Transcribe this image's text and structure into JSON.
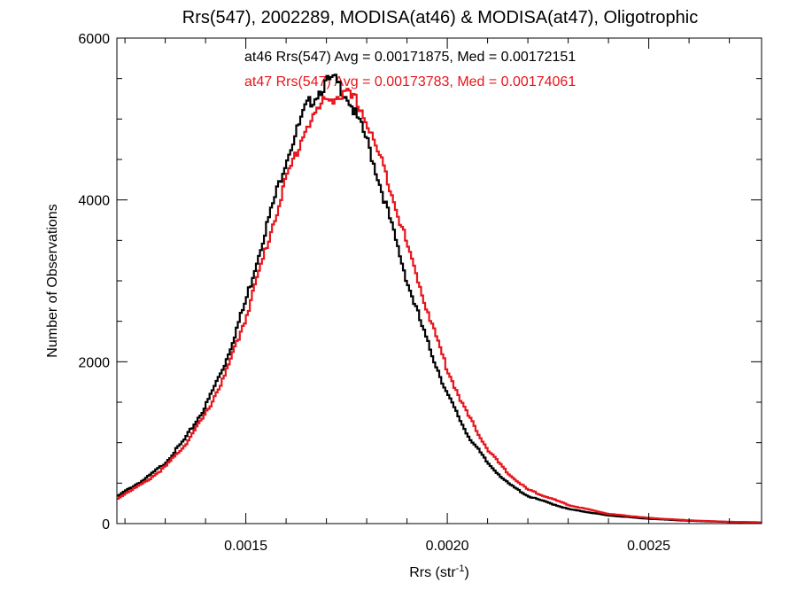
{
  "chart_data": {
    "type": "line",
    "title": "Rrs(547), 2002289, MODISA(at46) & MODISA(at47), Oligotrophic",
    "xlabel": "Rrs (str",
    "xlabel_sup": "-1",
    "xlabel_end": ")",
    "ylabel": "Number of Observations",
    "xlim": [
      0.00118,
      0.00278
    ],
    "ylim": [
      0,
      6000
    ],
    "x_ticks": [
      0.0015,
      0.002,
      0.0025
    ],
    "x_tick_labels": [
      "0.0015",
      "0.0020",
      "0.0025"
    ],
    "y_ticks": [
      0,
      2000,
      4000,
      6000
    ],
    "y_tick_labels": [
      "0",
      "2000",
      "4000",
      "6000"
    ],
    "step": true,
    "series": [
      {
        "name": "at46",
        "color": "#000000",
        "x": [
          0.00118,
          0.0012,
          0.00125,
          0.0013,
          0.00135,
          0.0014,
          0.00145,
          0.0015,
          0.00155,
          0.0016,
          0.00165,
          0.0017,
          0.00172,
          0.00175,
          0.0018,
          0.00185,
          0.0019,
          0.00195,
          0.002,
          0.00205,
          0.0021,
          0.00215,
          0.0022,
          0.0023,
          0.0024,
          0.0025,
          0.0026,
          0.0027,
          0.00278
        ],
        "y": [
          330,
          400,
          550,
          750,
          1050,
          1450,
          2000,
          2750,
          3650,
          4500,
          5150,
          5450,
          5480,
          5300,
          4750,
          3900,
          3000,
          2250,
          1600,
          1100,
          750,
          500,
          340,
          180,
          100,
          60,
          35,
          20,
          15
        ]
      },
      {
        "name": "at47",
        "color": "#e8141b",
        "x": [
          0.00118,
          0.0012,
          0.00125,
          0.0013,
          0.00135,
          0.0014,
          0.00145,
          0.0015,
          0.00155,
          0.0016,
          0.00165,
          0.0017,
          0.00175,
          0.00178,
          0.0018,
          0.00185,
          0.0019,
          0.00195,
          0.002,
          0.00205,
          0.0021,
          0.00215,
          0.0022,
          0.0023,
          0.0024,
          0.0025,
          0.0026,
          0.0027,
          0.00278
        ],
        "y": [
          300,
          370,
          510,
          700,
          980,
          1350,
          1850,
          2550,
          3400,
          4250,
          4900,
          5250,
          5300,
          5200,
          4950,
          4300,
          3450,
          2650,
          1900,
          1350,
          920,
          620,
          420,
          230,
          120,
          70,
          40,
          22,
          15
        ]
      }
    ],
    "annotations": [
      {
        "text": "at46 Rrs(547) Avg = 0.00171875, Med = 0.00172151",
        "color": "#000000"
      },
      {
        "text": "at47 Rrs(547) Avg = 0.00173783, Med = 0.00174061",
        "color": "#e8141b"
      }
    ]
  }
}
